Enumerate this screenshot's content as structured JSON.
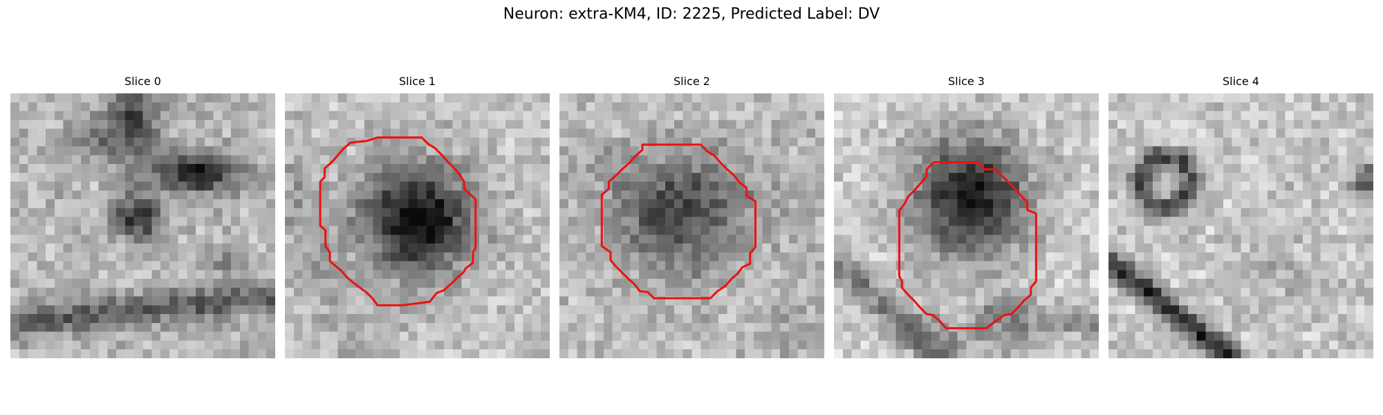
{
  "figure": {
    "title": "Neuron: extra-KM4, ID: 2225, Predicted Label: DV"
  },
  "panels": [
    {
      "title": "Slice 0",
      "has_contour": false
    },
    {
      "title": "Slice 1",
      "has_contour": true
    },
    {
      "title": "Slice 2",
      "has_contour": true
    },
    {
      "title": "Slice 3",
      "has_contour": true
    },
    {
      "title": "Slice 4",
      "has_contour": false
    }
  ],
  "colors": {
    "contour": "#ee1111",
    "background": "#ffffff"
  }
}
